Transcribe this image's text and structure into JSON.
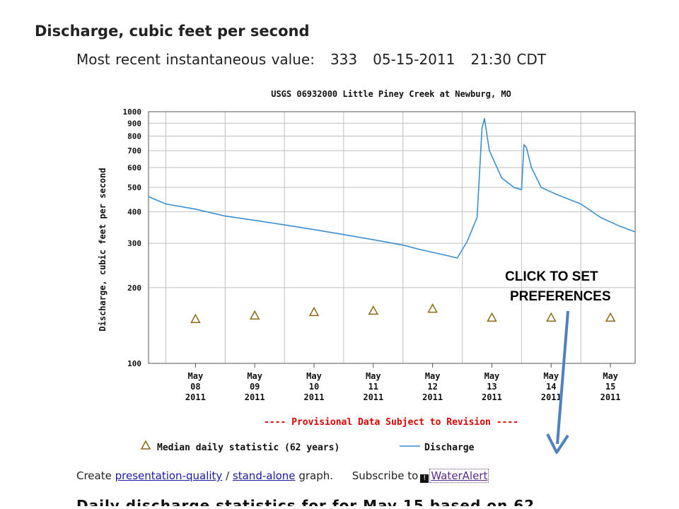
{
  "page": {
    "heading": "Discharge, cubic feet per second",
    "recent_label": "Most recent instantaneous value:",
    "recent_value": "333",
    "recent_date": "05-15-2011",
    "recent_time": "21:30 CDT"
  },
  "chart_data": {
    "type": "line",
    "title": "USGS 06932000 Little Piney Creek at Newburg, MO",
    "ylabel": "Discharge, cubic feet per second",
    "xlabel": "",
    "yscale": "log",
    "ylim": [
      100,
      1000
    ],
    "yticks": [
      100,
      200,
      300,
      400,
      500,
      600,
      700,
      800,
      900,
      1000
    ],
    "xlim": [
      "2011-05-07 17:00",
      "2011-05-15 22:00"
    ],
    "xtick_labels": [
      [
        "May",
        "08",
        "2011"
      ],
      [
        "May",
        "09",
        "2011"
      ],
      [
        "May",
        "10",
        "2011"
      ],
      [
        "May",
        "11",
        "2011"
      ],
      [
        "May",
        "12",
        "2011"
      ],
      [
        "May",
        "13",
        "2011"
      ],
      [
        "May",
        "14",
        "2011"
      ],
      [
        "May",
        "15",
        "2011"
      ]
    ],
    "grid": true,
    "series": [
      {
        "name": "Discharge",
        "color": "#3a8fd0",
        "points": [
          [
            "2011-05-07 17:00",
            460
          ],
          [
            "2011-05-08 00:00",
            430
          ],
          [
            "2011-05-08 12:00",
            410
          ],
          [
            "2011-05-09 00:00",
            385
          ],
          [
            "2011-05-09 12:00",
            370
          ],
          [
            "2011-05-10 00:00",
            355
          ],
          [
            "2011-05-10 12:00",
            340
          ],
          [
            "2011-05-11 00:00",
            325
          ],
          [
            "2011-05-11 12:00",
            310
          ],
          [
            "2011-05-12 00:00",
            295
          ],
          [
            "2011-05-12 06:00",
            285
          ],
          [
            "2011-05-12 12:00",
            276
          ],
          [
            "2011-05-12 18:00",
            268
          ],
          [
            "2011-05-12 22:00",
            262
          ],
          [
            "2011-05-13 02:00",
            305
          ],
          [
            "2011-05-13 06:00",
            380
          ],
          [
            "2011-05-13 08:00",
            860
          ],
          [
            "2011-05-13 09:00",
            940
          ],
          [
            "2011-05-13 11:00",
            700
          ],
          [
            "2011-05-13 16:00",
            545
          ],
          [
            "2011-05-13 21:00",
            500
          ],
          [
            "2011-05-14 00:00",
            490
          ],
          [
            "2011-05-14 01:00",
            740
          ],
          [
            "2011-05-14 02:00",
            720
          ],
          [
            "2011-05-14 04:00",
            600
          ],
          [
            "2011-05-14 08:00",
            500
          ],
          [
            "2011-05-14 14:00",
            470
          ],
          [
            "2011-05-15 00:00",
            430
          ],
          [
            "2011-05-15 08:00",
            380
          ],
          [
            "2011-05-15 16:00",
            350
          ],
          [
            "2011-05-15 22:00",
            333
          ]
        ]
      },
      {
        "name": "Median daily statistic (62 years)",
        "color": "#8a6a16",
        "marker": "triangle",
        "points": [
          [
            "2011-05-08 12:00",
            150
          ],
          [
            "2011-05-09 12:00",
            155
          ],
          [
            "2011-05-10 12:00",
            160
          ],
          [
            "2011-05-11 12:00",
            162
          ],
          [
            "2011-05-12 12:00",
            165
          ],
          [
            "2011-05-13 12:00",
            152
          ],
          [
            "2011-05-14 12:00",
            152
          ],
          [
            "2011-05-15 12:00",
            152
          ]
        ]
      }
    ],
    "provisional_note": "---- Provisional Data Subject to Revision ----",
    "legend": [
      {
        "label": "Median daily statistic (62 years)",
        "symbol": "triangle",
        "color": "#8a6a16"
      },
      {
        "label": "Discharge",
        "symbol": "line",
        "color": "#3a8fd0"
      }
    ],
    "legend_position": "bottom",
    "colors": {
      "axis": "#555555",
      "grid": "#bfbfbf",
      "note": "#dd0000",
      "arrow": "#4f81bd"
    }
  },
  "callout": {
    "line1": "CLICK TO SET",
    "line2": "PREFERENCES"
  },
  "footer": {
    "create_text": "Create",
    "presentation_link": "presentation-quality",
    "slash": "/",
    "standalone_link": "stand-alone",
    "graph_text": "graph.",
    "subscribe_text": "Subscribe to",
    "wateralert_icon": "alert-icon",
    "wateralert_link": "WaterAlert",
    "cut_text": "Daily discharge statistics for for May 15 based on 62"
  }
}
